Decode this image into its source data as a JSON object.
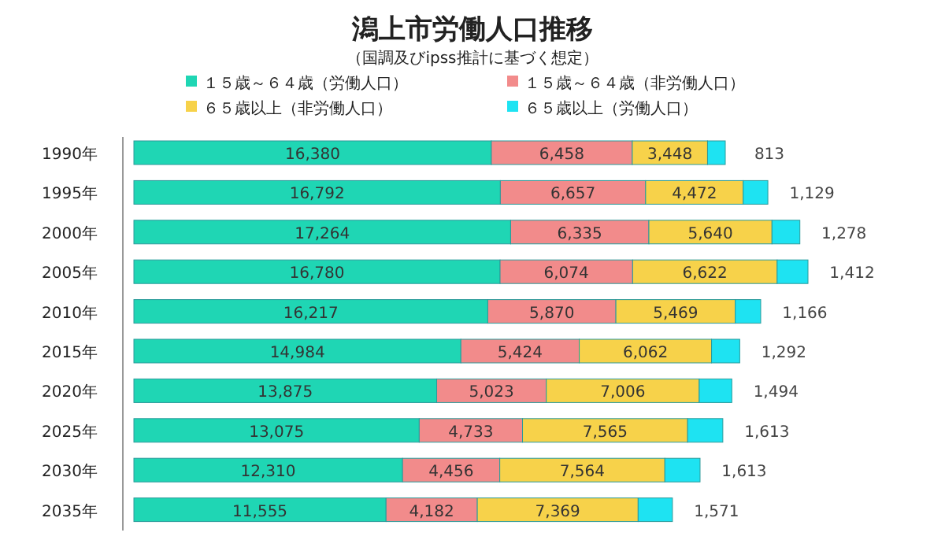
{
  "chart_data": {
    "type": "bar",
    "orientation": "horizontal",
    "stacked": true,
    "legend": "top",
    "title": "潟上市労働人口推移",
    "subtitle": "（国調及びipss推計に基づく想定）",
    "categories": [
      "1990年",
      "1995年",
      "2000年",
      "2005年",
      "2010年",
      "2015年",
      "2020年",
      "2025年",
      "2030年",
      "2035年"
    ],
    "series": [
      {
        "name": "１５歳～６４歳（労働人口）",
        "color": "#1fd6b4",
        "values": [
          16380,
          16792,
          17264,
          16780,
          16217,
          14984,
          13875,
          13075,
          12310,
          11555
        ],
        "value_labels": [
          "16,380",
          "16,792",
          "17,264",
          "16,780",
          "16,217",
          "14,984",
          "13,875",
          "13,075",
          "12,310",
          "11,555"
        ]
      },
      {
        "name": "１５歳～６４歳（非労働人口）",
        "color": "#f28b8b",
        "values": [
          6458,
          6657,
          6335,
          6074,
          5870,
          5424,
          5023,
          4733,
          4456,
          4182
        ],
        "value_labels": [
          "6,458",
          "6,657",
          "6,335",
          "6,074",
          "5,870",
          "5,424",
          "5,023",
          "4,733",
          "4,456",
          "4,182"
        ]
      },
      {
        "name": "６５歳以上（非労働人口）",
        "color": "#f7d24a",
        "values": [
          3448,
          4472,
          5640,
          6622,
          5469,
          6062,
          7006,
          7565,
          7564,
          7369
        ],
        "value_labels": [
          "3,448",
          "4,472",
          "5,640",
          "6,622",
          "5,469",
          "6,062",
          "7,006",
          "7,565",
          "7,564",
          "7,369"
        ]
      },
      {
        "name": "６５歳以上（労働人口）",
        "color": "#1ee3f2",
        "values": [
          813,
          1129,
          1278,
          1412,
          1166,
          1292,
          1494,
          1613,
          1613,
          1571
        ],
        "value_labels": [
          "813",
          "1,129",
          "1,278",
          "1,412",
          "1,166",
          "1,292",
          "1,494",
          "1,613",
          "1,613",
          "1,571"
        ]
      }
    ]
  }
}
